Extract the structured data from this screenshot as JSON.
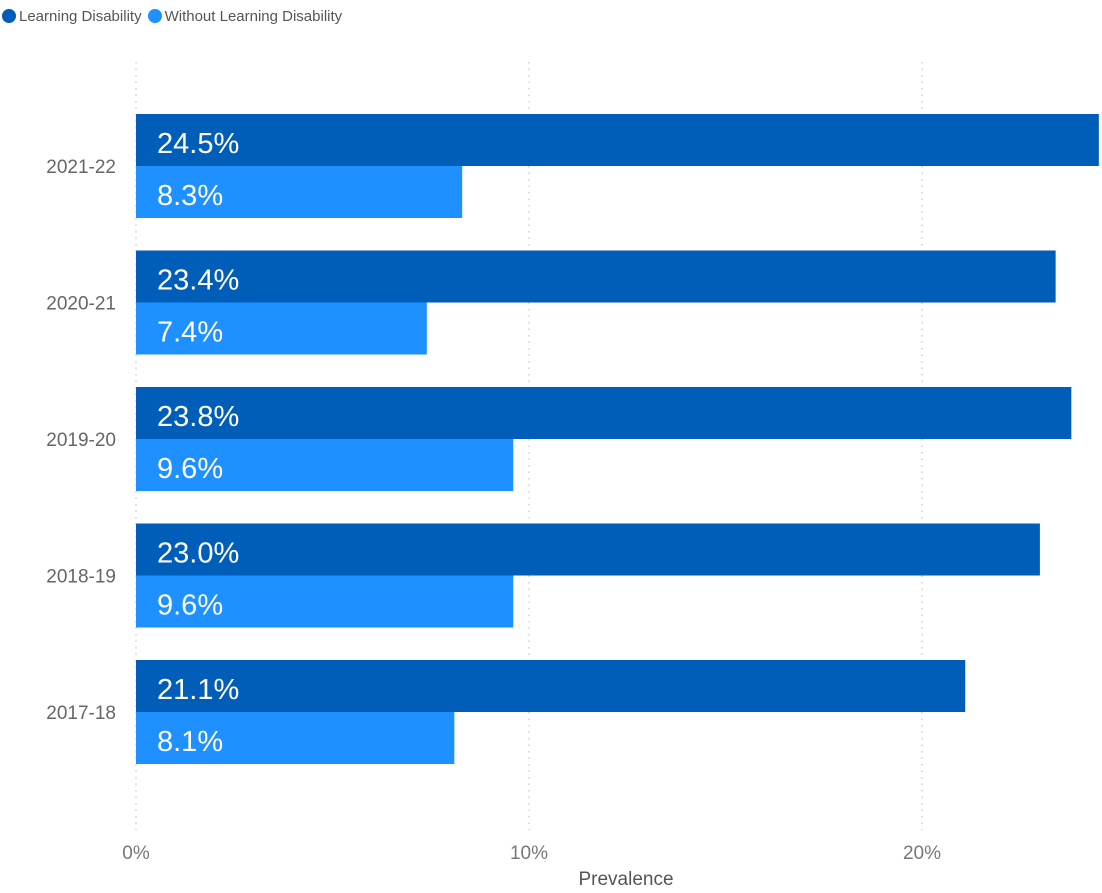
{
  "chart_data": {
    "type": "bar",
    "orientation": "horizontal",
    "categories": [
      "2021-22",
      "2020-21",
      "2019-20",
      "2018-19",
      "2017-18"
    ],
    "series": [
      {
        "name": "Learning Disability",
        "color": "#005EB8",
        "values": [
          24.5,
          23.4,
          23.8,
          23.0,
          21.1
        ],
        "labels": [
          "24.5%",
          "23.4%",
          "23.8%",
          "23.0%",
          "21.1%"
        ]
      },
      {
        "name": "Without Learning Disability",
        "color": "#1E90FF",
        "values": [
          8.3,
          7.4,
          9.6,
          9.6,
          8.1
        ],
        "labels": [
          "8.3%",
          "7.4%",
          "9.6%",
          "9.6%",
          "8.1%"
        ]
      }
    ],
    "xlabel": "Prevalence",
    "ylabel": "",
    "xlim": [
      0,
      24.5
    ],
    "xticks": [
      0,
      10,
      20
    ],
    "xtick_labels": [
      "0%",
      "10%",
      "20%"
    ],
    "grid": true,
    "legend_position": "top-left"
  }
}
